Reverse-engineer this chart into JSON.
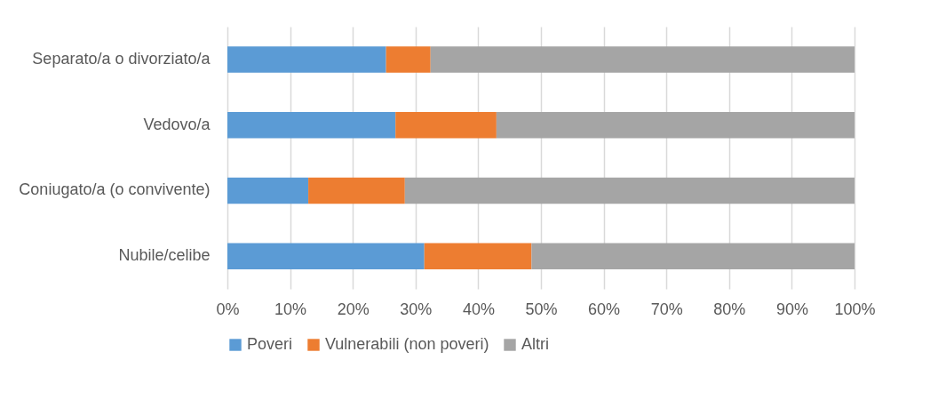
{
  "chart_data": {
    "type": "bar",
    "orientation": "horizontal",
    "stacked": true,
    "categories": [
      "Separato/a o divorziato/a",
      "Vedovo/a",
      "Coniugato/a (o convivente)",
      "Nubile/celibe"
    ],
    "series": [
      {
        "name": "Poveri",
        "color": "#5b9bd5",
        "values": [
          25.3,
          26.8,
          12.9,
          31.4
        ]
      },
      {
        "name": "Vulnerabili (non poveri)",
        "color": "#ed7d31",
        "values": [
          7.1,
          16.1,
          15.4,
          17.1
        ]
      },
      {
        "name": "Altri",
        "color": "#a5a5a5",
        "values": [
          67.6,
          57.1,
          71.7,
          51.5
        ]
      }
    ],
    "xlim": [
      0,
      100
    ],
    "xticks": [
      {
        "value": 0,
        "label": "0%"
      },
      {
        "value": 10,
        "label": "10%"
      },
      {
        "value": 20,
        "label": "20%"
      },
      {
        "value": 30,
        "label": "30%"
      },
      {
        "value": 40,
        "label": "40%"
      },
      {
        "value": 50,
        "label": "50%"
      },
      {
        "value": 60,
        "label": "60%"
      },
      {
        "value": 70,
        "label": "70%"
      },
      {
        "value": 80,
        "label": "80%"
      },
      {
        "value": 90,
        "label": "90%"
      },
      {
        "value": 100,
        "label": "100%"
      }
    ],
    "grid": "x",
    "legend": "bottom"
  }
}
